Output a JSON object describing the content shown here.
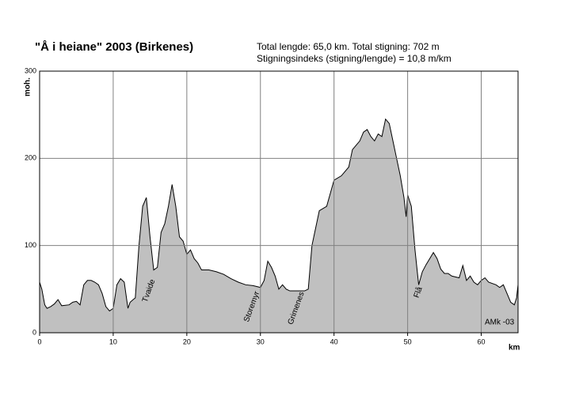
{
  "chart_data": {
    "type": "area",
    "title": "\"Å i heiane\" 2003 (Birkenes)",
    "subtitle": [
      "Total lengde: 65,0 km. Total stigning: 702 m",
      "Stigningsindeks (stigning/lengde) = 10,8 m/km"
    ],
    "ylabel": "moh.",
    "xlabel": "km",
    "annotations": [
      "Tvaide",
      "Storemyr",
      "Grimenes",
      "Flå",
      "AMk -03"
    ],
    "color": "#c0c0c0",
    "grid": true,
    "xlim": [
      0,
      65
    ],
    "xticks": [
      0,
      10,
      20,
      30,
      40,
      50,
      60
    ],
    "ylim": [
      0,
      300
    ],
    "yticks": [
      0,
      100,
      200,
      300
    ],
    "x": [
      0,
      0.3,
      0.7,
      1,
      1.5,
      2,
      2.5,
      3,
      4,
      4.5,
      5,
      5.5,
      6,
      6.5,
      7,
      7.5,
      8,
      8.5,
      9,
      9.5,
      10,
      10.5,
      11,
      11.5,
      12,
      12.3,
      12.7,
      13,
      13.5,
      14,
      14.5,
      15,
      15.5,
      16,
      16.5,
      17,
      17.5,
      18,
      18.5,
      19,
      19.5,
      20,
      20.5,
      21,
      21.5,
      22,
      23,
      24,
      25,
      26,
      27,
      28,
      29,
      30,
      30.5,
      31,
      31.5,
      32,
      32.5,
      33,
      33.5,
      34,
      35,
      36,
      36.5,
      37,
      37.5,
      38,
      39,
      39.5,
      40,
      41,
      42,
      42.5,
      43,
      43.5,
      44,
      44.5,
      45,
      45.5,
      46,
      46.5,
      47,
      47.5,
      48,
      48.5,
      49,
      49.5,
      49.8,
      50,
      50.5,
      51,
      51.5,
      52,
      52.5,
      53,
      53.5,
      54,
      54.5,
      55,
      55.5,
      56,
      57,
      57.5,
      58,
      58.5,
      59,
      59.5,
      60,
      60.5,
      61,
      62,
      62.5,
      63,
      63.5,
      64,
      64.5,
      64.8,
      65
    ],
    "values": [
      58,
      50,
      32,
      28,
      30,
      33,
      38,
      31,
      32,
      35,
      36,
      32,
      55,
      60,
      60,
      58,
      55,
      45,
      30,
      25,
      28,
      55,
      62,
      58,
      28,
      35,
      38,
      40,
      100,
      145,
      155,
      110,
      72,
      75,
      115,
      125,
      145,
      170,
      145,
      110,
      105,
      90,
      95,
      85,
      80,
      72,
      72,
      70,
      67,
      62,
      58,
      55,
      54,
      52,
      60,
      82,
      75,
      65,
      50,
      55,
      50,
      48,
      48,
      48,
      50,
      100,
      120,
      140,
      145,
      160,
      175,
      180,
      190,
      210,
      215,
      220,
      230,
      233,
      225,
      220,
      228,
      225,
      245,
      240,
      220,
      200,
      180,
      155,
      133,
      158,
      145,
      95,
      55,
      70,
      78,
      85,
      92,
      85,
      73,
      68,
      68,
      65,
      63,
      77,
      60,
      65,
      58,
      55,
      60,
      63,
      58,
      55,
      52,
      55,
      45,
      35,
      32,
      40,
      55
    ]
  }
}
